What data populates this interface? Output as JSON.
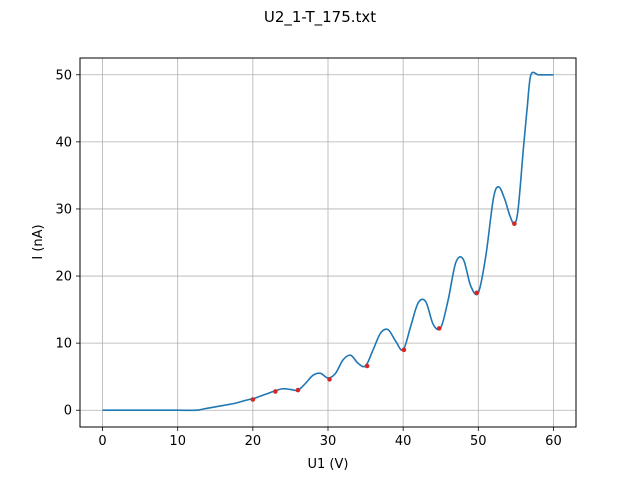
{
  "chart_data": {
    "type": "line",
    "title": "U2_1-T_175.txt",
    "xlabel": "U1 (V)",
    "ylabel": "I (nA)",
    "xlim": [
      -3,
      63
    ],
    "ylim": [
      -2.5,
      52.5
    ],
    "xticks": [
      0,
      10,
      20,
      30,
      40,
      50,
      60
    ],
    "yticks": [
      0,
      10,
      20,
      30,
      40,
      50
    ],
    "grid": true,
    "line_color": "#1f77b4",
    "marker_color": "#d62728",
    "series": [
      {
        "x": [
          0,
          2,
          4,
          6,
          8,
          10,
          12.5,
          13.5,
          14.5,
          15.5,
          16.5,
          17.5,
          18.5,
          19.5,
          20,
          21,
          22,
          23,
          24,
          25,
          26,
          27,
          28,
          29,
          30,
          31,
          32,
          33,
          34,
          35,
          36,
          37,
          38,
          39,
          40,
          41,
          42,
          43,
          44,
          45,
          46,
          47,
          48,
          49,
          50,
          51,
          52,
          52.7,
          53.5,
          54.2,
          54.8,
          55.3,
          56,
          56.5,
          57,
          58,
          59,
          60
        ],
        "y": [
          0,
          0,
          0,
          0,
          0,
          0,
          0,
          0.2,
          0.4,
          0.6,
          0.8,
          1.0,
          1.3,
          1.6,
          1.7,
          2.1,
          2.5,
          2.9,
          3.2,
          3.1,
          3.0,
          4.0,
          5.2,
          5.5,
          4.8,
          5.5,
          7.5,
          8.2,
          7.0,
          6.6,
          9.0,
          11.5,
          12.0,
          10.3,
          9.0,
          12.5,
          16.0,
          16.2,
          12.8,
          12.3,
          16.5,
          22.0,
          22.5,
          18.5,
          17.5,
          23.0,
          31.5,
          33.3,
          31.5,
          29.0,
          27.8,
          30.0,
          39.0,
          45.0,
          50.0,
          50.0,
          50.0,
          50.0
        ]
      }
    ],
    "markers": {
      "x": [
        20.0,
        23.0,
        26.0,
        30.2,
        35.2,
        40.1,
        44.8,
        49.8,
        54.8
      ],
      "y": [
        1.6,
        2.8,
        3.0,
        4.6,
        6.6,
        9.0,
        12.2,
        17.5,
        27.8
      ]
    }
  }
}
